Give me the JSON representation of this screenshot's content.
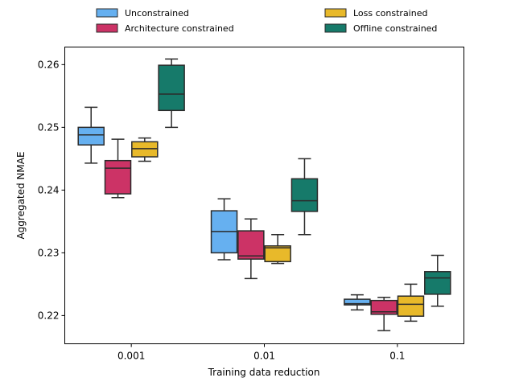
{
  "chart_data": {
    "type": "box",
    "xlabel": "Training data reduction",
    "ylabel": "Aggregated NMAE",
    "categories": [
      "0.001",
      "0.01",
      "0.1"
    ],
    "ylim": [
      0.2155,
      0.2628
    ],
    "yticks": [
      0.22,
      0.23,
      0.24,
      0.25,
      0.26
    ],
    "ytick_labels": [
      "0.22",
      "0.23",
      "0.24",
      "0.25",
      "0.26"
    ],
    "legend": {
      "placement": "top",
      "columns": 2
    },
    "series": [
      {
        "name": "Unconstrained",
        "color": "#66b0f0",
        "boxes": [
          {
            "whisker_low": 0.2443,
            "q1": 0.2472,
            "median": 0.2488,
            "q3": 0.25,
            "whisker_high": 0.2532
          },
          {
            "whisker_low": 0.2289,
            "q1": 0.23,
            "median": 0.2334,
            "q3": 0.2367,
            "whisker_high": 0.2386
          },
          {
            "whisker_low": 0.2209,
            "q1": 0.2217,
            "median": 0.2219,
            "q3": 0.2226,
            "whisker_high": 0.2233
          }
        ]
      },
      {
        "name": "Architecture constrained",
        "color": "#cc3366",
        "boxes": [
          {
            "whisker_low": 0.2388,
            "q1": 0.2394,
            "median": 0.2435,
            "q3": 0.2447,
            "whisker_high": 0.2481
          },
          {
            "whisker_low": 0.2259,
            "q1": 0.229,
            "median": 0.2295,
            "q3": 0.2335,
            "whisker_high": 0.2354
          },
          {
            "whisker_low": 0.2176,
            "q1": 0.2202,
            "median": 0.2206,
            "q3": 0.2224,
            "whisker_high": 0.2229
          }
        ]
      },
      {
        "name": "Loss constrained",
        "color": "#e8b92a",
        "boxes": [
          {
            "whisker_low": 0.2446,
            "q1": 0.2453,
            "median": 0.2466,
            "q3": 0.2477,
            "whisker_high": 0.2483
          },
          {
            "whisker_low": 0.2283,
            "q1": 0.2286,
            "median": 0.2308,
            "q3": 0.2311,
            "whisker_high": 0.2329
          },
          {
            "whisker_low": 0.2191,
            "q1": 0.2199,
            "median": 0.2218,
            "q3": 0.2231,
            "whisker_high": 0.225
          }
        ]
      },
      {
        "name": "Offline constrained",
        "color": "#167a6a",
        "boxes": [
          {
            "whisker_low": 0.25,
            "q1": 0.2527,
            "median": 0.2553,
            "q3": 0.2599,
            "whisker_high": 0.2609
          },
          {
            "whisker_low": 0.2329,
            "q1": 0.2366,
            "median": 0.2383,
            "q3": 0.2418,
            "whisker_high": 0.245
          },
          {
            "whisker_low": 0.2215,
            "q1": 0.2234,
            "median": 0.226,
            "q3": 0.227,
            "whisker_high": 0.2296
          }
        ]
      }
    ]
  }
}
